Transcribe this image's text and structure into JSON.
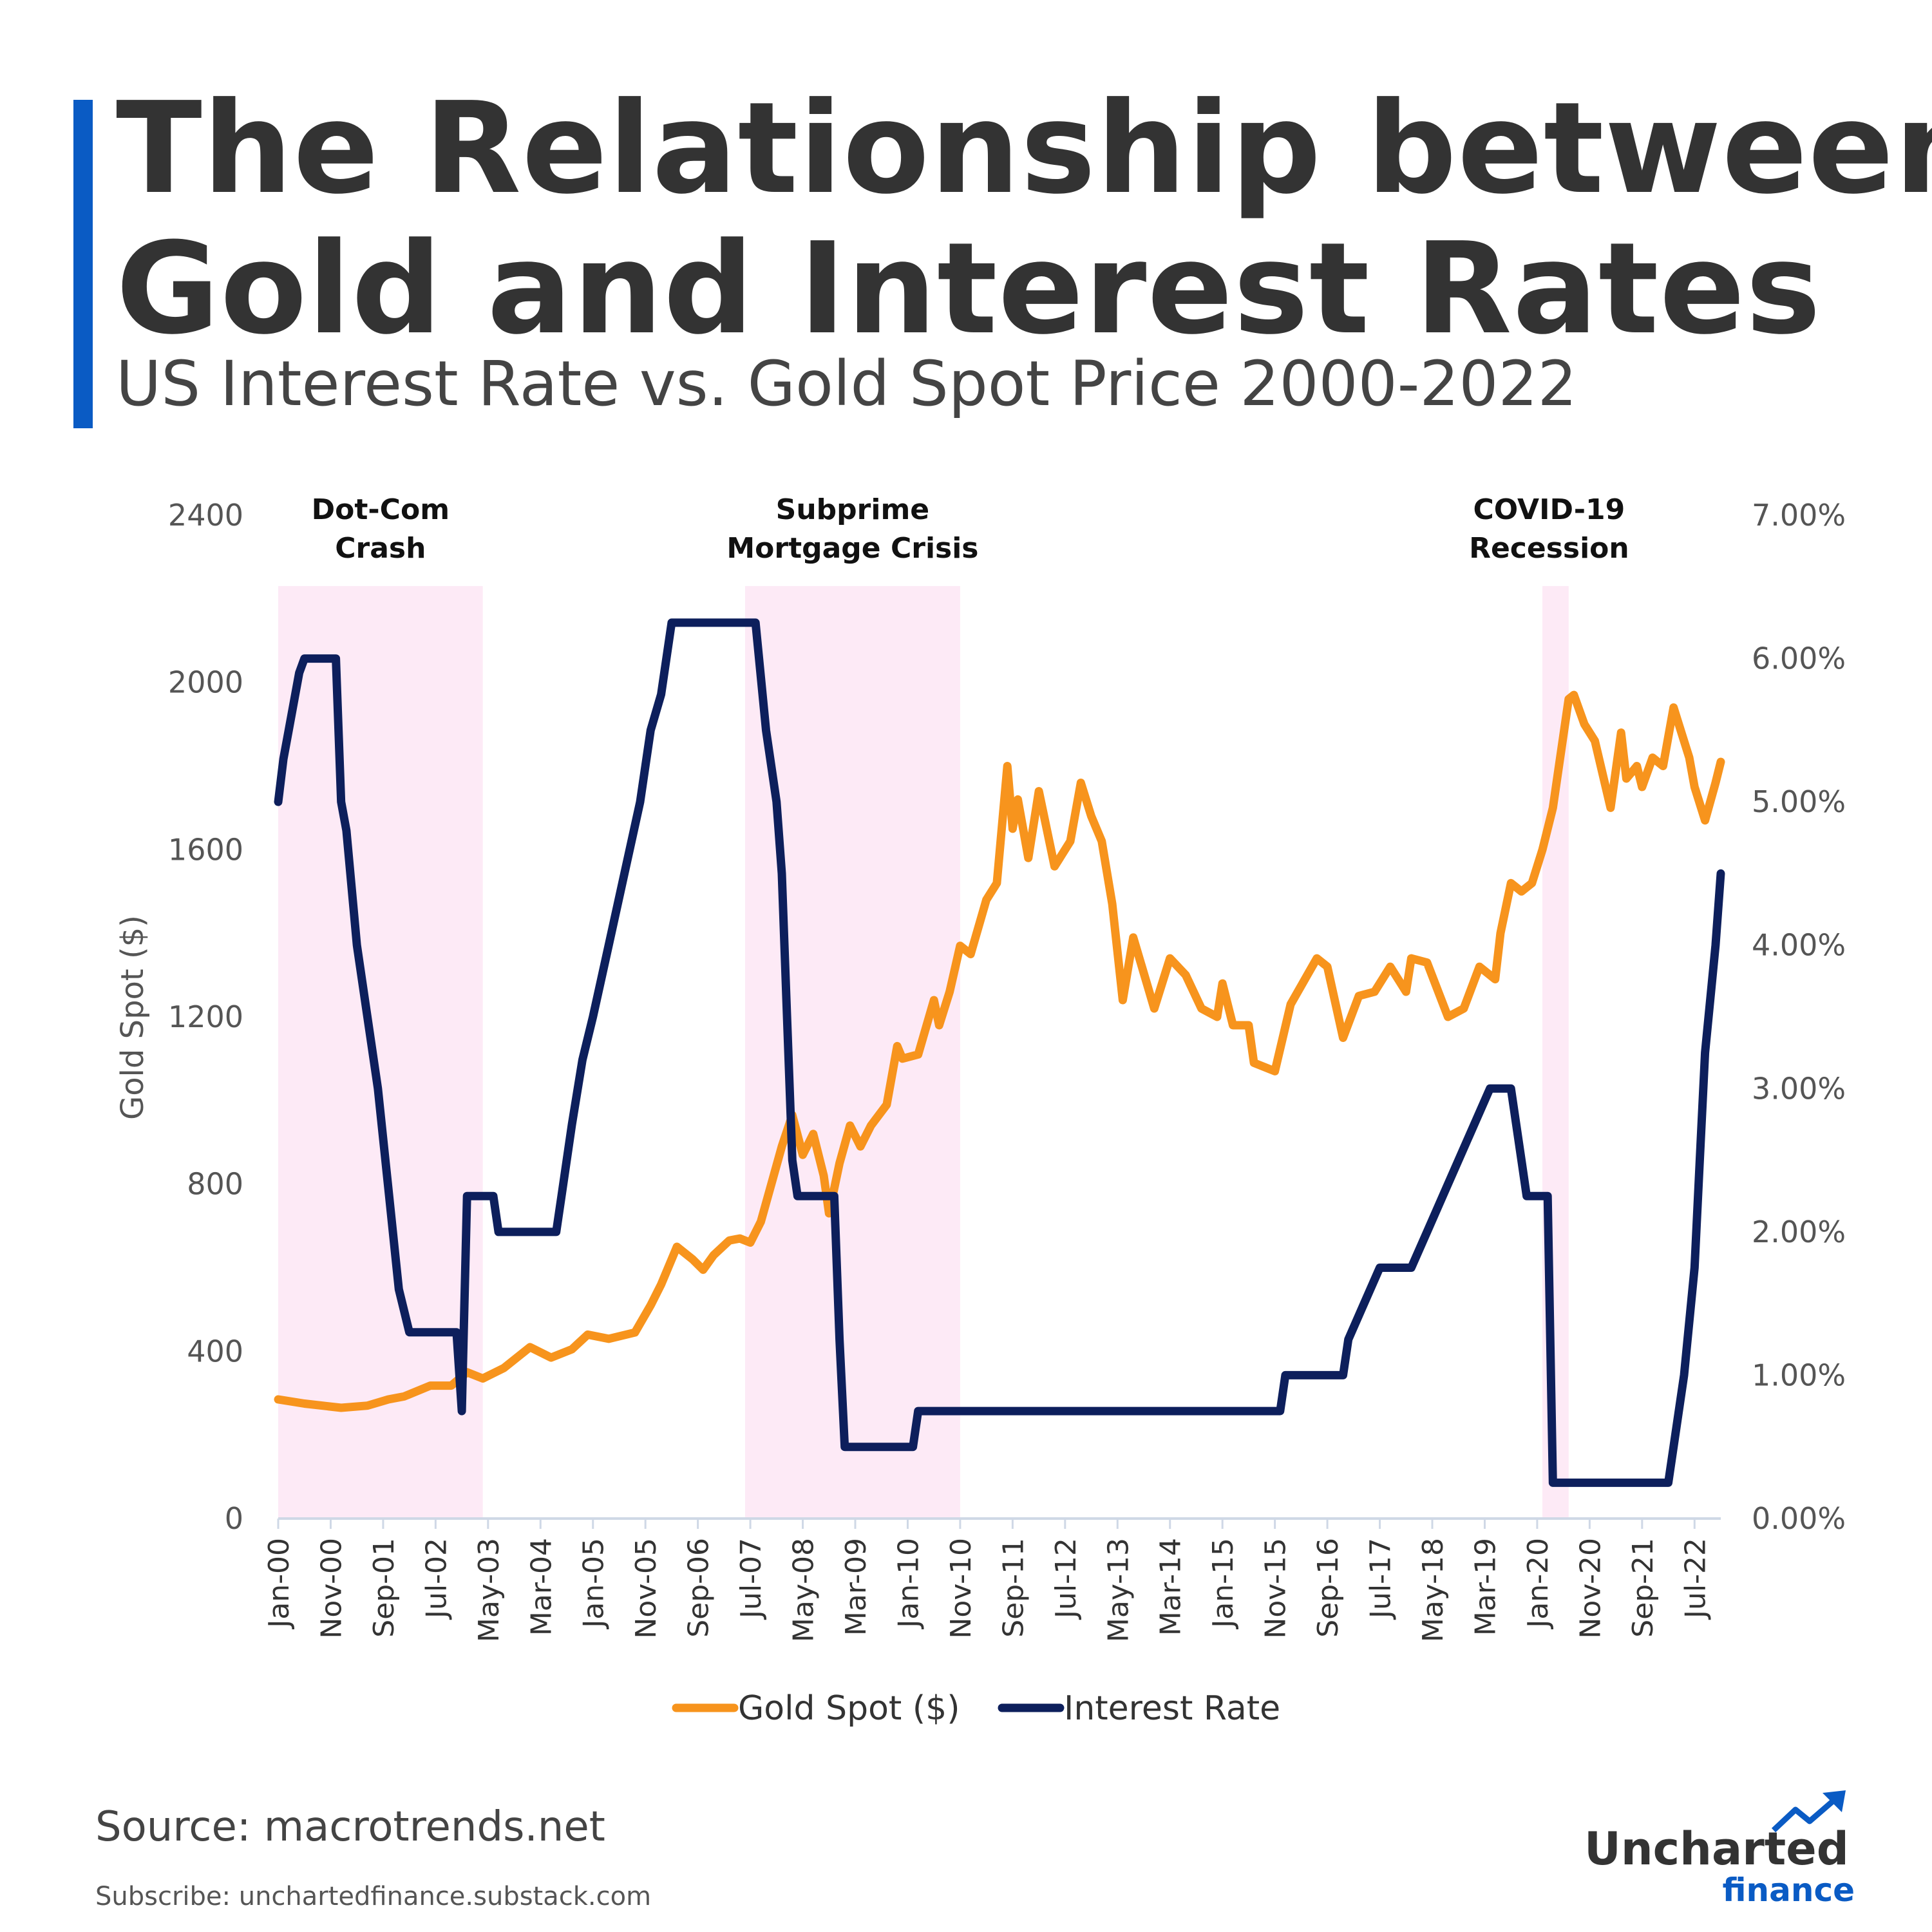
{
  "header": {
    "title_line1": "The Relationship between",
    "title_line2": "Gold and Interest Rates",
    "subtitle": "US Interest Rate vs. Gold Spot Price 2000-2022"
  },
  "footer": {
    "source": "Source: macrotrends.net",
    "subscribe": "Subscribe: unchartedfinance.substack.com"
  },
  "logo": {
    "word1": "Uncharted",
    "word2": "finance",
    "icon": "trend-up-arrow-icon"
  },
  "colors": {
    "accent": "#0a5bc4",
    "gold": "#f7941d",
    "rate": "#0d1f5c",
    "recession": "#fdeaf6",
    "text": "#333333"
  },
  "chart_data": {
    "type": "line",
    "ylabel": "Gold Spot ($)",
    "y_left_ticks": [
      "0",
      "400",
      "800",
      "1200",
      "1600",
      "2000",
      "2400"
    ],
    "y_right_ticks": [
      "0.00%",
      "1.00%",
      "2.00%",
      "3.00%",
      "4.00%",
      "5.00%",
      "6.00%",
      "7.00%"
    ],
    "ylim_left": [
      0,
      2400
    ],
    "ylim_right": [
      0,
      7
    ],
    "x_tick_labels": [
      "Jan-00",
      "Nov-00",
      "Sep-01",
      "Jul-02",
      "May-03",
      "Mar-04",
      "Jan-05",
      "Nov-05",
      "Sep-06",
      "Jul-07",
      "May-08",
      "Mar-09",
      "Jan-10",
      "Nov-10",
      "Sep-11",
      "Jul-12",
      "May-13",
      "Mar-14",
      "Jan-15",
      "Nov-15",
      "Sep-16",
      "Jul-17",
      "May-18",
      "Mar-19",
      "Jan-20",
      "Nov-20",
      "Sep-21",
      "Jul-22"
    ],
    "legend_position": "bottom",
    "shaded_periods": [
      {
        "label_line1": "Dot-Com",
        "label_line2": "Crash",
        "start": "Jan-00",
        "end": "Apr-03"
      },
      {
        "label_line1": "Subprime",
        "label_line2": "Mortgage Crisis",
        "start": "Jun-07",
        "end": "Nov-10"
      },
      {
        "label_line1": "COVID-19",
        "label_line2": "Recession",
        "start": "Feb-20",
        "end": "Jul-20"
      }
    ],
    "series": [
      {
        "name": "Gold Spot ($)",
        "axis": "left",
        "points": [
          [
            "Jan-00",
            285
          ],
          [
            "Jun-00",
            275
          ],
          [
            "Jan-01",
            265
          ],
          [
            "Jun-01",
            270
          ],
          [
            "Oct-01",
            285
          ],
          [
            "Jan-02",
            292
          ],
          [
            "Jun-02",
            318
          ],
          [
            "Oct-02",
            318
          ],
          [
            "Jan-03",
            350
          ],
          [
            "Apr-03",
            335
          ],
          [
            "Aug-03",
            360
          ],
          [
            "Jan-04",
            410
          ],
          [
            "May-04",
            385
          ],
          [
            "Sep-04",
            405
          ],
          [
            "Dec-04",
            440
          ],
          [
            "Apr-05",
            430
          ],
          [
            "Sep-05",
            445
          ],
          [
            "Dec-05",
            510
          ],
          [
            "Feb-06",
            560
          ],
          [
            "May-06",
            650
          ],
          [
            "Aug-06",
            620
          ],
          [
            "Oct-06",
            595
          ],
          [
            "Dec-06",
            630
          ],
          [
            "Mar-07",
            665
          ],
          [
            "May-07",
            670
          ],
          [
            "Jul-07",
            660
          ],
          [
            "Sep-07",
            710
          ],
          [
            "Nov-07",
            800
          ],
          [
            "Jan-08",
            890
          ],
          [
            "Mar-08",
            965
          ],
          [
            "May-08",
            870
          ],
          [
            "Jul-08",
            920
          ],
          [
            "Sep-08",
            820
          ],
          [
            "Oct-08",
            730
          ],
          [
            "Dec-08",
            850
          ],
          [
            "Feb-09",
            940
          ],
          [
            "Apr-09",
            890
          ],
          [
            "Jun-09",
            940
          ],
          [
            "Sep-09",
            990
          ],
          [
            "Nov-09",
            1130
          ],
          [
            "Dec-09",
            1100
          ],
          [
            "Mar-10",
            1110
          ],
          [
            "Jun-10",
            1240
          ],
          [
            "Jul-10",
            1180
          ],
          [
            "Sep-10",
            1260
          ],
          [
            "Nov-10",
            1370
          ],
          [
            "Jan-11",
            1350
          ],
          [
            "Apr-11",
            1480
          ],
          [
            "Jun-11",
            1520
          ],
          [
            "Aug-11",
            1800
          ],
          [
            "Sep-11",
            1650
          ],
          [
            "Oct-11",
            1720
          ],
          [
            "Dec-11",
            1580
          ],
          [
            "Feb-12",
            1740
          ],
          [
            "May-12",
            1560
          ],
          [
            "Aug-12",
            1620
          ],
          [
            "Oct-12",
            1760
          ],
          [
            "Dec-12",
            1680
          ],
          [
            "Feb-13",
            1620
          ],
          [
            "Apr-13",
            1470
          ],
          [
            "Jun-13",
            1240
          ],
          [
            "Aug-13",
            1390
          ],
          [
            "Dec-13",
            1220
          ],
          [
            "Mar-14",
            1340
          ],
          [
            "Jun-14",
            1300
          ],
          [
            "Sep-14",
            1220
          ],
          [
            "Dec-14",
            1200
          ],
          [
            "Jan-15",
            1280
          ],
          [
            "Mar-15",
            1180
          ],
          [
            "Jun-15",
            1180
          ],
          [
            "Jul-15",
            1090
          ],
          [
            "Nov-15",
            1070
          ],
          [
            "Feb-16",
            1230
          ],
          [
            "Jul-16",
            1340
          ],
          [
            "Sep-16",
            1320
          ],
          [
            "Dec-16",
            1150
          ],
          [
            "Mar-17",
            1250
          ],
          [
            "Jun-17",
            1260
          ],
          [
            "Sep-17",
            1320
          ],
          [
            "Dec-17",
            1260
          ],
          [
            "Jan-18",
            1340
          ],
          [
            "Apr-18",
            1330
          ],
          [
            "Aug-18",
            1200
          ],
          [
            "Nov-18",
            1220
          ],
          [
            "Feb-19",
            1320
          ],
          [
            "May-19",
            1290
          ],
          [
            "Jun-19",
            1400
          ],
          [
            "Aug-19",
            1520
          ],
          [
            "Oct-19",
            1500
          ],
          [
            "Dec-19",
            1520
          ],
          [
            "Feb-20",
            1600
          ],
          [
            "Apr-20",
            1700
          ],
          [
            "Jul-20",
            1960
          ],
          [
            "Aug-20",
            1970
          ],
          [
            "Oct-20",
            1900
          ],
          [
            "Dec-20",
            1860
          ],
          [
            "Mar-21",
            1700
          ],
          [
            "May-21",
            1880
          ],
          [
            "Jun-21",
            1770
          ],
          [
            "Aug-21",
            1800
          ],
          [
            "Sep-21",
            1750
          ],
          [
            "Nov-21",
            1820
          ],
          [
            "Jan-22",
            1800
          ],
          [
            "Mar-22",
            1940
          ],
          [
            "Apr-22",
            1900
          ],
          [
            "Jun-22",
            1820
          ],
          [
            "Jul-22",
            1750
          ],
          [
            "Sep-22",
            1670
          ],
          [
            "Nov-22",
            1760
          ],
          [
            "Dec-22",
            1810
          ]
        ]
      },
      {
        "name": "Interest Rate",
        "axis": "right",
        "points": [
          [
            "Jan-00",
            5.0
          ],
          [
            "Feb-00",
            5.3
          ],
          [
            "Mar-00",
            5.5
          ],
          [
            "May-00",
            5.9
          ],
          [
            "Jun-00",
            6.0
          ],
          [
            "Dec-00",
            6.0
          ],
          [
            "Jan-01",
            5.0
          ],
          [
            "Feb-01",
            4.8
          ],
          [
            "Apr-01",
            4.0
          ],
          [
            "Jun-01",
            3.5
          ],
          [
            "Aug-01",
            3.0
          ],
          [
            "Oct-01",
            2.3
          ],
          [
            "Dec-01",
            1.6
          ],
          [
            "Feb-02",
            1.3
          ],
          [
            "Nov-02",
            1.3
          ],
          [
            "Dec-02",
            0.75
          ],
          [
            "Jan-03",
            2.25
          ],
          [
            "Jun-03",
            2.25
          ],
          [
            "Jul-03",
            2.0
          ],
          [
            "Jun-04",
            2.0
          ],
          [
            "Jul-04",
            2.25
          ],
          [
            "Sep-04",
            2.75
          ],
          [
            "Nov-04",
            3.2
          ],
          [
            "Jan-05",
            3.5
          ],
          [
            "Apr-05",
            4.0
          ],
          [
            "Jul-05",
            4.5
          ],
          [
            "Oct-05",
            5.0
          ],
          [
            "Dec-05",
            5.5
          ],
          [
            "Feb-06",
            5.75
          ],
          [
            "Apr-06",
            6.25
          ],
          [
            "Aug-07",
            6.25
          ],
          [
            "Oct-07",
            5.5
          ],
          [
            "Dec-07",
            5.0
          ],
          [
            "Jan-08",
            4.5
          ],
          [
            "Feb-08",
            3.5
          ],
          [
            "Mar-08",
            2.5
          ],
          [
            "Apr-08",
            2.25
          ],
          [
            "Nov-08",
            2.25
          ],
          [
            "Dec-08",
            1.25
          ],
          [
            "Jan-09",
            0.5
          ],
          [
            "Feb-10",
            0.5
          ],
          [
            "Mar-10",
            0.75
          ],
          [
            "Dec-15",
            0.75
          ],
          [
            "Jan-16",
            1.0
          ],
          [
            "Dec-16",
            1.0
          ],
          [
            "Jan-17",
            1.25
          ],
          [
            "Apr-17",
            1.5
          ],
          [
            "Jul-17",
            1.75
          ],
          [
            "Jan-18",
            1.75
          ],
          [
            "Apr-18",
            2.0
          ],
          [
            "Jul-18",
            2.25
          ],
          [
            "Oct-18",
            2.5
          ],
          [
            "Jan-19",
            2.75
          ],
          [
            "Apr-19",
            3.0
          ],
          [
            "Aug-19",
            3.0
          ],
          [
            "Oct-19",
            2.5
          ],
          [
            "Nov-19",
            2.25
          ],
          [
            "Mar-20",
            2.25
          ],
          [
            "Apr-20",
            0.25
          ],
          [
            "Feb-22",
            0.25
          ],
          [
            "Mar-22",
            0.5
          ],
          [
            "May-22",
            1.0
          ],
          [
            "Jul-22",
            1.75
          ],
          [
            "Aug-22",
            2.5
          ],
          [
            "Sep-22",
            3.25
          ],
          [
            "Nov-22",
            4.0
          ],
          [
            "Dec-22",
            4.5
          ]
        ]
      }
    ]
  }
}
